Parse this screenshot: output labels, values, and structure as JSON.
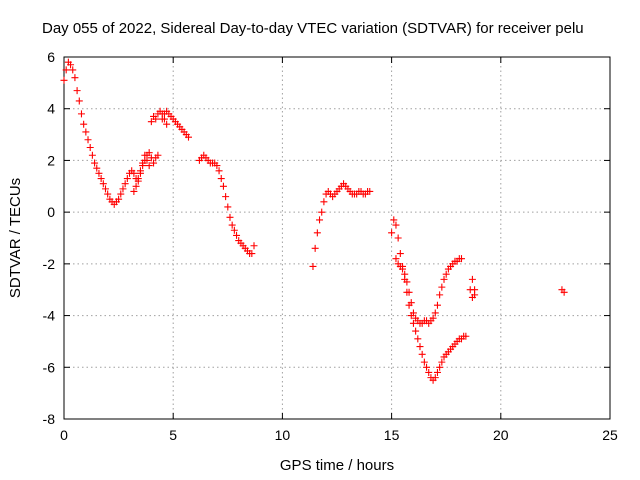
{
  "chart_data": {
    "type": "scatter",
    "title": "Day 055 of 2022, Sidereal Day-to-day VTEC variation (SDTVAR) for receiver pelu",
    "xlabel": "GPS time / hours",
    "ylabel": "SDTVAR / TECUs",
    "xlim": [
      0,
      25
    ],
    "ylim": [
      -8,
      6
    ],
    "xticks": [
      0,
      5,
      10,
      15,
      20,
      25
    ],
    "yticks": [
      -8,
      -6,
      -4,
      -2,
      0,
      2,
      4,
      6
    ],
    "grid": true,
    "marker": "+",
    "color": "#ff0000",
    "series": [
      {
        "name": "SDTVAR",
        "x": [
          0.0,
          0.1,
          0.2,
          0.3,
          0.4,
          0.5,
          0.6,
          0.7,
          0.8,
          0.9,
          1.0,
          1.1,
          1.2,
          1.3,
          1.4,
          1.5,
          1.6,
          1.7,
          1.8,
          1.9,
          2.0,
          2.1,
          2.2,
          2.3,
          2.4,
          2.5,
          2.6,
          2.7,
          2.8,
          2.9,
          3.0,
          3.1,
          3.2,
          3.3,
          3.4,
          3.5,
          3.6,
          3.7,
          3.8,
          3.9,
          4.0,
          4.1,
          4.2,
          4.3,
          4.4,
          4.5,
          4.6,
          4.7,
          3.2,
          3.3,
          3.4,
          3.5,
          3.6,
          3.7,
          3.8,
          3.9,
          4.0,
          4.1,
          4.2,
          4.3,
          4.5,
          4.6,
          4.7,
          4.8,
          4.9,
          5.0,
          5.1,
          5.2,
          5.3,
          5.4,
          5.5,
          5.6,
          5.7,
          6.2,
          6.3,
          6.4,
          6.5,
          6.6,
          6.7,
          6.8,
          6.9,
          7.0,
          7.1,
          7.2,
          7.3,
          7.4,
          7.5,
          7.6,
          7.7,
          7.8,
          7.9,
          8.0,
          8.1,
          8.2,
          8.3,
          8.4,
          8.5,
          8.6,
          8.7,
          11.4,
          11.5,
          11.6,
          11.7,
          11.8,
          11.9,
          12.0,
          12.1,
          12.2,
          12.3,
          12.4,
          12.5,
          12.6,
          12.7,
          12.8,
          12.9,
          13.0,
          13.1,
          13.2,
          13.3,
          13.4,
          13.5,
          13.6,
          13.7,
          13.8,
          13.9,
          14.0,
          15.0,
          15.1,
          15.2,
          15.3,
          15.4,
          15.5,
          15.6,
          15.7,
          15.8,
          15.9,
          16.0,
          16.1,
          16.2,
          16.3,
          16.4,
          16.5,
          16.6,
          16.7,
          16.8,
          16.9,
          17.0,
          17.1,
          17.2,
          17.3,
          17.4,
          17.5,
          17.6,
          17.7,
          17.8,
          17.9,
          18.0,
          18.1,
          18.2,
          18.3,
          18.4,
          15.2,
          15.3,
          15.4,
          15.5,
          15.6,
          15.7,
          15.8,
          15.9,
          16.0,
          16.1,
          16.2,
          16.3,
          16.4,
          16.5,
          16.6,
          16.7,
          16.8,
          16.9,
          17.0,
          17.1,
          17.2,
          17.3,
          17.4,
          17.5,
          17.6,
          17.7,
          17.8,
          17.9,
          18.0,
          18.1,
          18.2,
          18.6,
          18.7,
          18.7,
          18.8,
          18.8,
          22.8,
          22.9
        ],
        "y": [
          5.1,
          5.5,
          5.8,
          5.7,
          5.5,
          5.2,
          4.7,
          4.3,
          3.8,
          3.4,
          3.1,
          2.8,
          2.5,
          2.2,
          1.9,
          1.7,
          1.5,
          1.3,
          1.1,
          0.9,
          0.7,
          0.5,
          0.4,
          0.3,
          0.4,
          0.5,
          0.7,
          0.9,
          1.1,
          1.3,
          1.5,
          1.6,
          1.5,
          1.3,
          1.2,
          1.5,
          1.9,
          2.2,
          2.0,
          1.8,
          3.5,
          3.7,
          3.6,
          3.8,
          3.9,
          3.8,
          3.6,
          3.4,
          0.8,
          1.0,
          1.3,
          1.6,
          1.8,
          2.0,
          2.2,
          2.3,
          2.1,
          1.9,
          2.1,
          2.2,
          3.6,
          3.8,
          3.9,
          3.8,
          3.7,
          3.6,
          3.5,
          3.4,
          3.3,
          3.2,
          3.1,
          3.0,
          2.9,
          2.0,
          2.1,
          2.2,
          2.1,
          2.0,
          1.9,
          1.9,
          1.9,
          1.8,
          1.6,
          1.3,
          1.0,
          0.6,
          0.2,
          -0.2,
          -0.5,
          -0.7,
          -0.9,
          -1.1,
          -1.2,
          -1.3,
          -1.4,
          -1.5,
          -1.6,
          -1.6,
          -1.3,
          -2.1,
          -1.4,
          -0.8,
          -0.3,
          0.0,
          0.4,
          0.7,
          0.8,
          0.7,
          0.6,
          0.7,
          0.8,
          0.9,
          1.0,
          1.1,
          1.0,
          0.9,
          0.8,
          0.7,
          0.7,
          0.7,
          0.8,
          0.8,
          0.7,
          0.7,
          0.8,
          0.8,
          -0.8,
          -0.3,
          -0.5,
          -1.0,
          -1.6,
          -2.1,
          -2.6,
          -3.1,
          -3.6,
          -4.0,
          -4.3,
          -4.6,
          -4.9,
          -5.2,
          -5.5,
          -5.8,
          -6.0,
          -6.2,
          -6.4,
          -6.5,
          -6.4,
          -6.2,
          -6.0,
          -5.8,
          -5.6,
          -5.5,
          -5.4,
          -5.3,
          -5.2,
          -5.1,
          -5.0,
          -4.9,
          -4.9,
          -4.8,
          -4.8,
          -1.8,
          -2.0,
          -2.1,
          -2.2,
          -2.4,
          -2.7,
          -3.1,
          -3.5,
          -3.9,
          -4.1,
          -4.2,
          -4.3,
          -4.3,
          -4.2,
          -4.2,
          -4.3,
          -4.2,
          -4.1,
          -3.9,
          -3.6,
          -3.2,
          -2.9,
          -2.6,
          -2.4,
          -2.2,
          -2.1,
          -2.0,
          -1.9,
          -1.9,
          -1.8,
          -1.8,
          -3.0,
          -2.6,
          -3.3,
          -3.0,
          -3.2,
          -3.0,
          -3.1
        ]
      }
    ]
  }
}
